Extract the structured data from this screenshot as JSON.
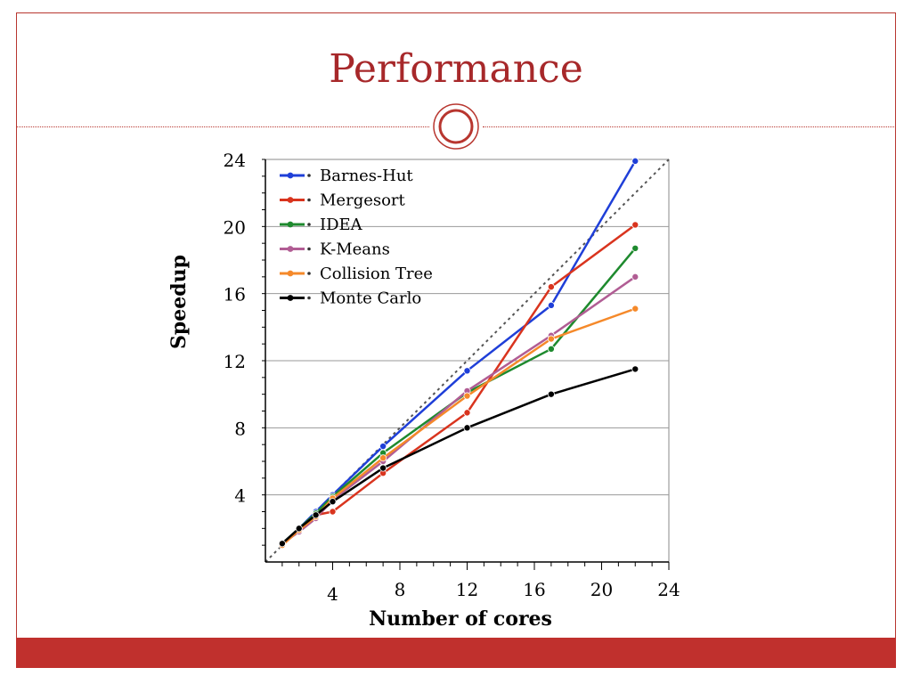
{
  "slide": {
    "title": "Performance",
    "theme_colors": {
      "accent": "#a7282a",
      "footer": "#c0302d"
    }
  },
  "chart_data": {
    "type": "line",
    "title": "",
    "xlabel": "Number of cores",
    "ylabel": "Speedup",
    "xlim": [
      0,
      24
    ],
    "ylim": [
      0,
      24
    ],
    "x_ticks": [
      4,
      8,
      12,
      16,
      20,
      24
    ],
    "y_ticks": [
      4,
      8,
      12,
      16,
      20,
      24
    ],
    "grid": "horizontal",
    "legend_position": "top-left",
    "reference_line": {
      "style": "dotted",
      "color": "#555555",
      "from": [
        0,
        0
      ],
      "to": [
        24,
        24
      ]
    },
    "series": [
      {
        "name": "Barnes-Hut",
        "color": "#1f3fd8",
        "x": [
          1,
          2,
          3,
          4,
          7,
          12,
          17,
          22
        ],
        "y": [
          1.1,
          2.0,
          3.0,
          4.0,
          6.9,
          11.4,
          15.3,
          23.9
        ]
      },
      {
        "name": "Mergesort",
        "color": "#d9341e",
        "x": [
          1,
          2,
          3,
          4,
          7,
          12,
          17,
          22
        ],
        "y": [
          1.0,
          1.9,
          2.8,
          3.0,
          5.3,
          8.9,
          16.4,
          20.1
        ]
      },
      {
        "name": "IDEA",
        "color": "#1e8a2e",
        "x": [
          1,
          2,
          3,
          4,
          7,
          12,
          17,
          22
        ],
        "y": [
          1.1,
          2.0,
          2.9,
          3.9,
          6.5,
          10.1,
          12.7,
          18.7
        ]
      },
      {
        "name": "K-Means",
        "color": "#b15d94",
        "x": [
          1,
          2,
          3,
          4,
          7,
          12,
          17,
          22
        ],
        "y": [
          1.1,
          1.8,
          2.6,
          3.7,
          6.0,
          10.2,
          13.5,
          17.0
        ]
      },
      {
        "name": "Collision Tree",
        "color": "#f5892a",
        "x": [
          1,
          2,
          3,
          4,
          7,
          12,
          17,
          22
        ],
        "y": [
          1.0,
          1.9,
          2.7,
          3.8,
          6.2,
          9.9,
          13.3,
          15.1
        ]
      },
      {
        "name": "Monte Carlo",
        "color": "#000000",
        "x": [
          1,
          2,
          3,
          4,
          7,
          12,
          17,
          22
        ],
        "y": [
          1.1,
          2.0,
          2.8,
          3.6,
          5.6,
          8.0,
          10.0,
          11.5
        ]
      }
    ]
  }
}
